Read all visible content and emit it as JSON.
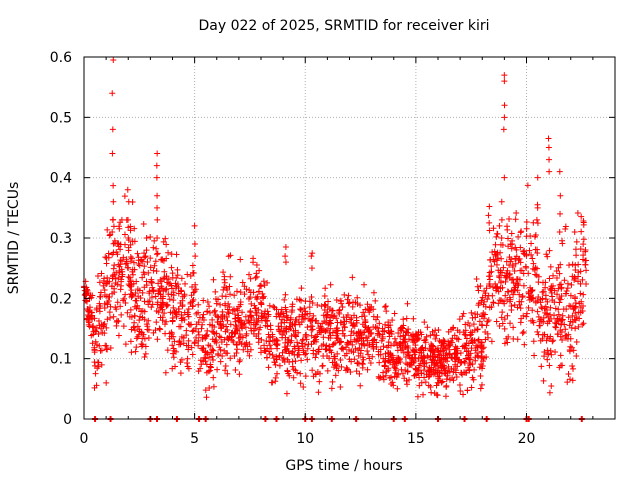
{
  "chart_data": {
    "type": "scatter",
    "title": "Day 022 of 2025, SRMTID for receiver kiri",
    "xlabel": "GPS time / hours",
    "ylabel": "SRMTID / TECUs",
    "xlim": [
      0,
      24
    ],
    "ylim": [
      0,
      0.6
    ],
    "xticks": [
      0,
      5,
      10,
      15,
      20
    ],
    "xtick_labels": [
      "0",
      "5",
      "10",
      "15",
      "20"
    ],
    "yticks": [
      0,
      0.1,
      0.2,
      0.3,
      0.4,
      0.5,
      0.6
    ],
    "ytick_labels": [
      "0",
      "0.1",
      "0.2",
      "0.3",
      "0.4",
      "0.5",
      "0.6"
    ],
    "grid": true,
    "marker": "+",
    "color": "#ff0000",
    "series": [
      {
        "name": "SRMTID",
        "profile": [
          [
            0.0,
            0.22
          ],
          [
            0.5,
            0.11
          ],
          [
            0.8,
            0.17
          ],
          [
            1.2,
            0.2
          ],
          [
            1.5,
            0.24
          ],
          [
            2.0,
            0.23
          ],
          [
            2.5,
            0.18
          ],
          [
            3.0,
            0.2
          ],
          [
            3.5,
            0.19
          ],
          [
            4.0,
            0.17
          ],
          [
            4.5,
            0.15
          ],
          [
            5.0,
            0.17
          ],
          [
            5.5,
            0.11
          ],
          [
            6.0,
            0.14
          ],
          [
            6.5,
            0.15
          ],
          [
            7.0,
            0.14
          ],
          [
            7.5,
            0.17
          ],
          [
            8.0,
            0.18
          ],
          [
            8.5,
            0.12
          ],
          [
            9.0,
            0.14
          ],
          [
            9.5,
            0.11
          ],
          [
            10.0,
            0.14
          ],
          [
            10.5,
            0.12
          ],
          [
            11.0,
            0.13
          ],
          [
            11.5,
            0.12
          ],
          [
            12.0,
            0.14
          ],
          [
            12.5,
            0.12
          ],
          [
            13.0,
            0.14
          ],
          [
            13.5,
            0.11
          ],
          [
            14.0,
            0.1
          ],
          [
            14.5,
            0.11
          ],
          [
            15.0,
            0.1
          ],
          [
            15.5,
            0.09
          ],
          [
            16.0,
            0.08
          ],
          [
            16.5,
            0.09
          ],
          [
            17.0,
            0.1
          ],
          [
            17.5,
            0.11
          ],
          [
            18.0,
            0.13
          ],
          [
            18.3,
            0.21
          ],
          [
            18.7,
            0.22
          ],
          [
            19.0,
            0.2
          ],
          [
            19.5,
            0.22
          ],
          [
            20.0,
            0.22
          ],
          [
            20.5,
            0.2
          ],
          [
            21.0,
            0.15
          ],
          [
            21.5,
            0.17
          ],
          [
            22.0,
            0.15
          ],
          [
            22.6,
            0.22
          ]
        ],
        "spread": [
          [
            0.0,
            0.01
          ],
          [
            0.5,
            0.03
          ],
          [
            1.0,
            0.05
          ],
          [
            3.0,
            0.05
          ],
          [
            5.0,
            0.04
          ],
          [
            8.0,
            0.035
          ],
          [
            12.0,
            0.035
          ],
          [
            15.0,
            0.025
          ],
          [
            17.0,
            0.025
          ],
          [
            18.3,
            0.05
          ],
          [
            21.0,
            0.05
          ],
          [
            22.6,
            0.05
          ]
        ],
        "time_range": [
          0.0,
          22.7
        ],
        "point_count": 2400,
        "spikes": [
          {
            "x": 1.3,
            "values": [
              0.595,
              0.54,
              0.48,
              0.44,
              0.36,
              0.33,
              0.31
            ]
          },
          {
            "x": 2.0,
            "values": [
              0.38,
              0.36,
              0.33,
              0.3
            ]
          },
          {
            "x": 2.8,
            "values": [
              0.3,
              0.28,
              0.27
            ]
          },
          {
            "x": 3.3,
            "values": [
              0.44,
              0.42,
              0.4,
              0.37,
              0.35,
              0.33,
              0.3
            ]
          },
          {
            "x": 5.0,
            "values": [
              0.32,
              0.29,
              0.27
            ]
          },
          {
            "x": 9.1,
            "values": [
              0.285,
              0.27,
              0.26
            ]
          },
          {
            "x": 10.3,
            "values": [
              0.275,
              0.27,
              0.25
            ]
          },
          {
            "x": 18.9,
            "values": [
              0.36,
              0.33,
              0.3
            ]
          },
          {
            "x": 19.0,
            "values": [
              0.57,
              0.56,
              0.52,
              0.5,
              0.48,
              0.4
            ]
          },
          {
            "x": 20.5,
            "values": [
              0.4,
              0.35,
              0.33
            ]
          },
          {
            "x": 21.0,
            "values": [
              0.465,
              0.45,
              0.43,
              0.41
            ]
          },
          {
            "x": 21.5,
            "values": [
              0.41,
              0.37,
              0.34,
              0.31
            ]
          }
        ]
      }
    ],
    "baseline_markers": {
      "y": 0,
      "x": [
        0.5,
        1.2,
        3.0,
        3.3,
        4.2,
        5.2,
        5.5,
        8.2,
        8.7,
        10.0,
        10.3,
        11.2,
        12.3,
        14.0,
        14.5,
        16.0,
        17.2,
        18.2,
        20.0,
        20.1,
        22.5
      ]
    }
  }
}
